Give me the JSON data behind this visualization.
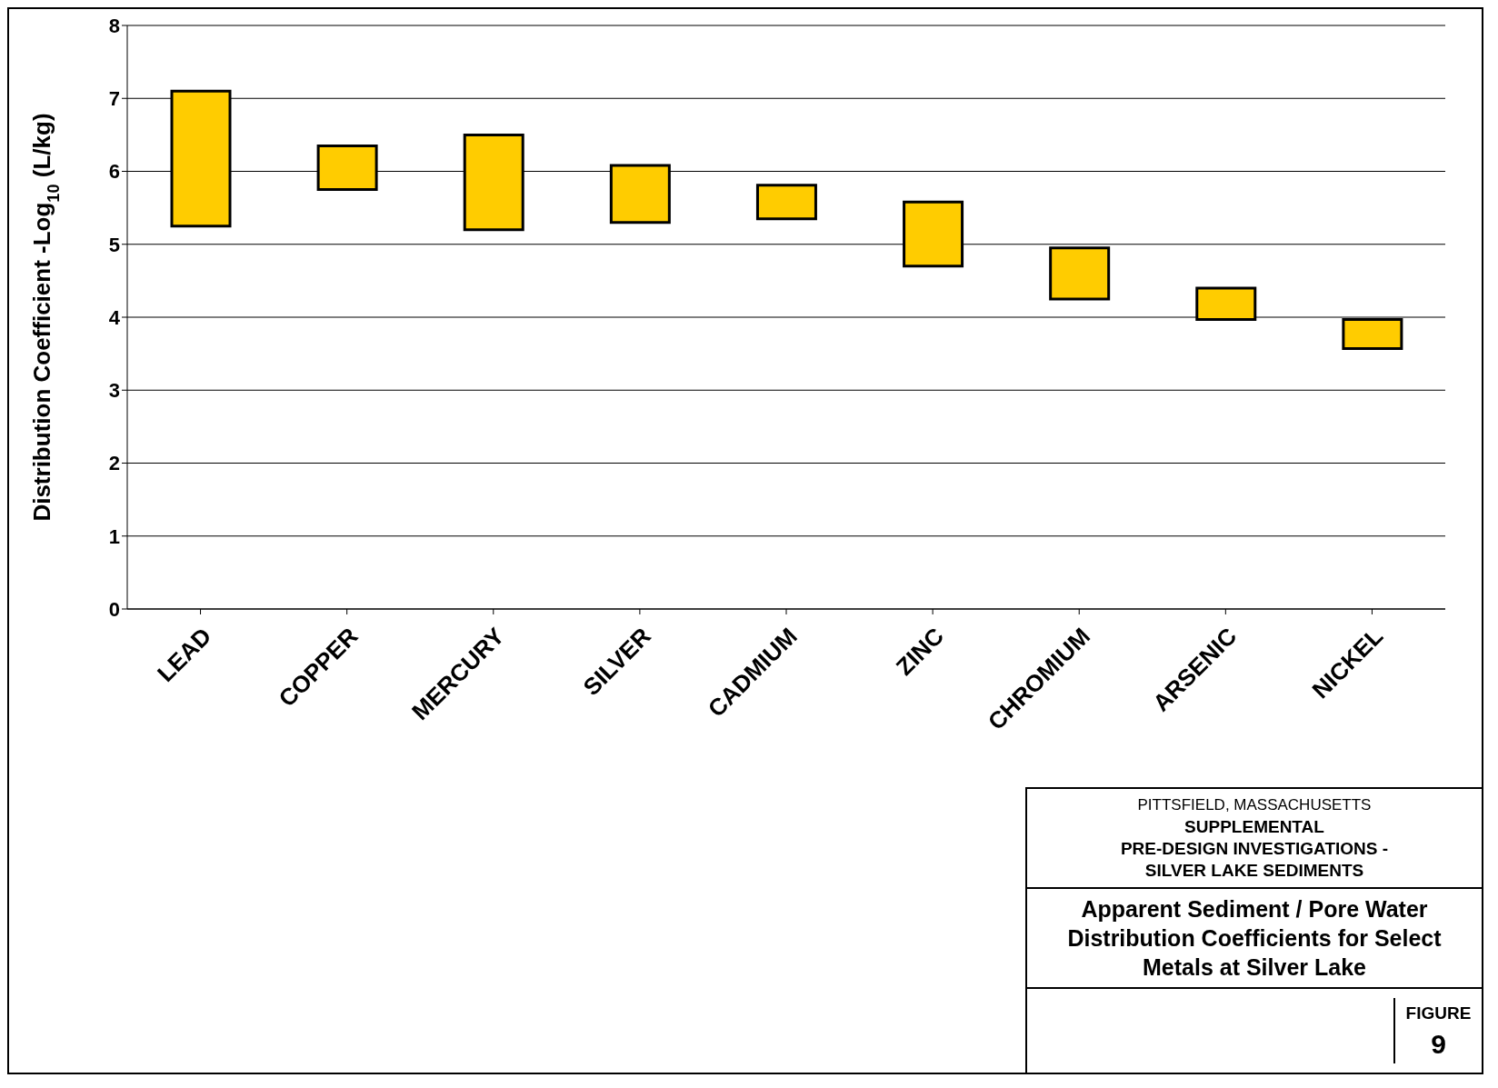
{
  "chart_data": {
    "type": "bar",
    "title": "Apparent Sediment / Pore Water Distribution Coefficients for Select Metals at Silver Lake",
    "ylabel": "Distribution Coefficient -Log$_{10}$ (L/kg)",
    "categories": [
      "LEAD",
      "COPPER",
      "MERCURY",
      "SILVER",
      "CADMIUM",
      "ZINC",
      "CHROMIUM",
      "ARSENIC",
      "NICKEL"
    ],
    "base": [
      5.25,
      5.75,
      5.2,
      5.3,
      5.35,
      4.7,
      4.25,
      3.97,
      3.57
    ],
    "values": [
      1.85,
      0.6,
      1.3,
      0.78,
      0.46,
      0.88,
      0.7,
      0.43,
      0.4
    ],
    "color": "#ffcc00",
    "ylim": [
      0,
      8
    ],
    "yticks": [
      0,
      1,
      2,
      3,
      4,
      5,
      6,
      7,
      8
    ],
    "grid": "y",
    "annotations": [
      "PITTSFIELD, MASSACHUSETTS",
      "SUPPLEMENTAL",
      "PRE-DESIGN INVESTIGATIONS -",
      "SILVER LAKE SEDIMENTS",
      "FIGURE",
      "9"
    ]
  }
}
